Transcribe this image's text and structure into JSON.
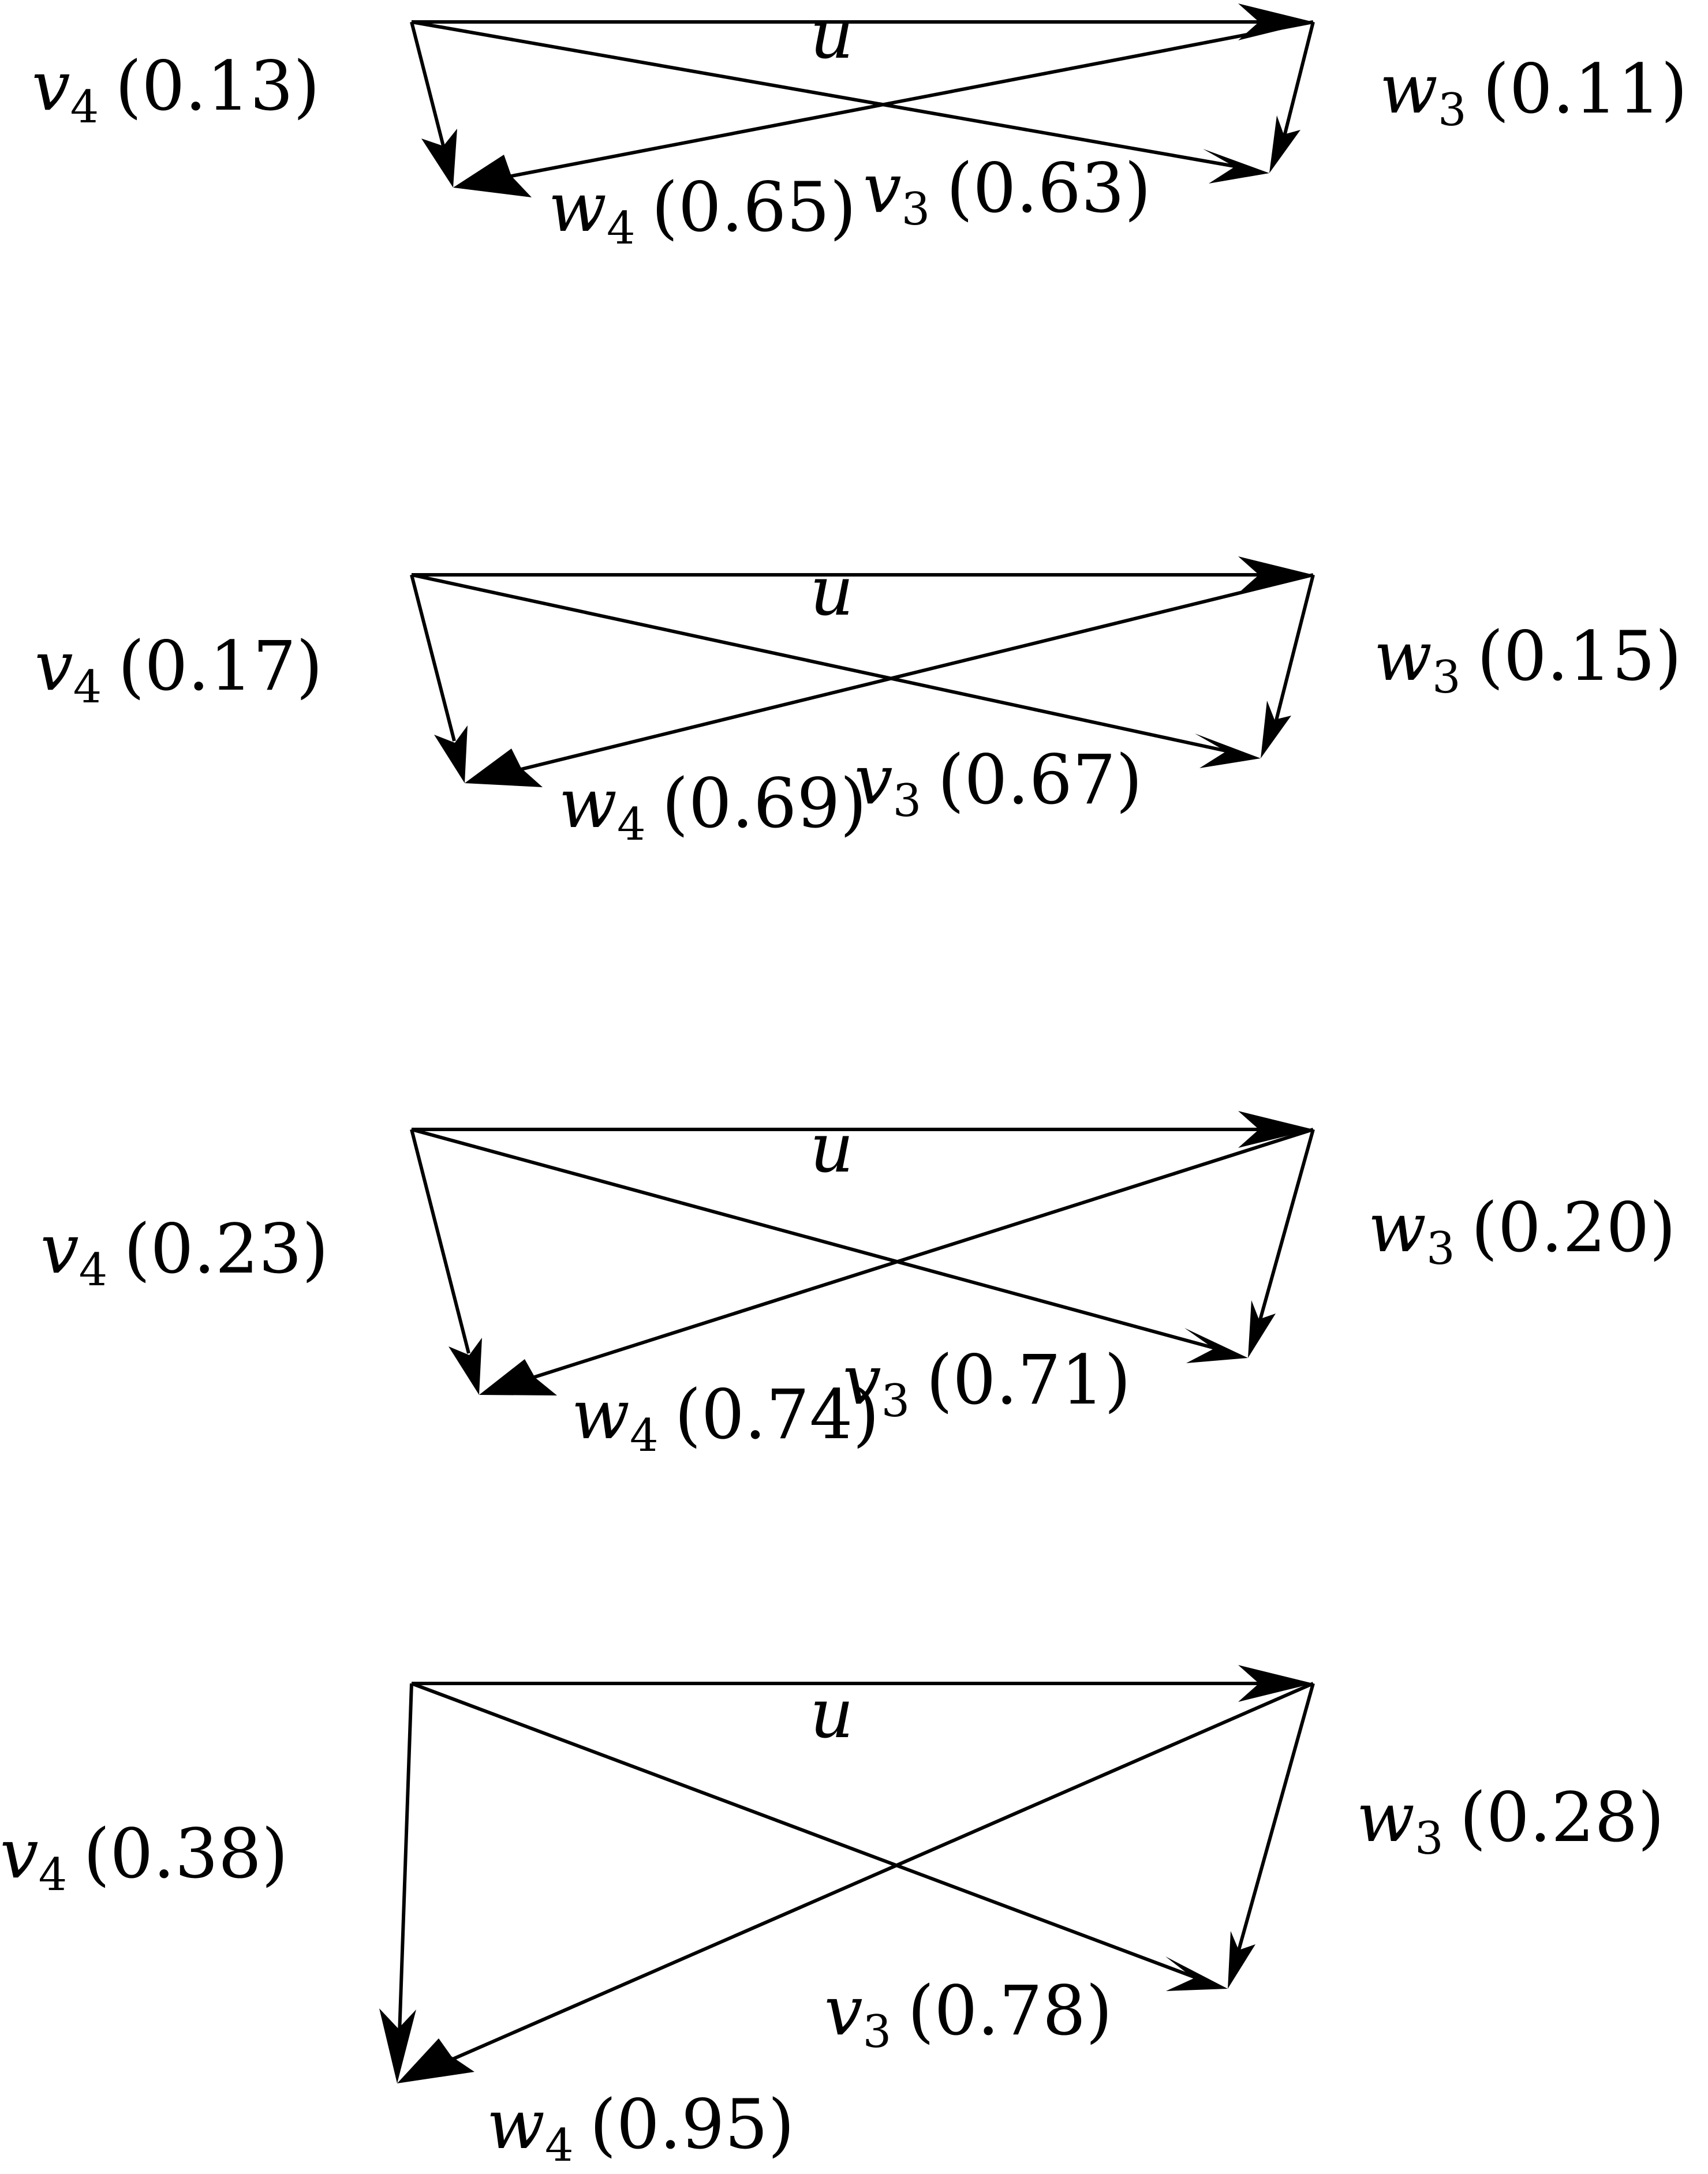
{
  "panels": [
    {
      "u": "u",
      "v4": {
        "name": "v",
        "sub": "4",
        "value": "(0.13)"
      },
      "w3": {
        "name": "w",
        "sub": "3",
        "value": "(0.11)"
      },
      "w4": {
        "name": "w",
        "sub": "4",
        "value": "(0.65)"
      },
      "v3": {
        "name": "v",
        "sub": "3",
        "value": "(0.63)"
      }
    },
    {
      "u": "u",
      "v4": {
        "name": "v",
        "sub": "4",
        "value": "(0.17)"
      },
      "w3": {
        "name": "w",
        "sub": "3",
        "value": "(0.15)"
      },
      "w4": {
        "name": "w",
        "sub": "4",
        "value": "(0.69)"
      },
      "v3": {
        "name": "v",
        "sub": "3",
        "value": "(0.67)"
      }
    },
    {
      "u": "u",
      "v4": {
        "name": "v",
        "sub": "4",
        "value": "(0.23)"
      },
      "w3": {
        "name": "w",
        "sub": "3",
        "value": "(0.20)"
      },
      "w4": {
        "name": "w",
        "sub": "4",
        "value": "(0.74)"
      },
      "v3": {
        "name": "v",
        "sub": "3",
        "value": "(0.71)"
      }
    },
    {
      "u": "u",
      "v4": {
        "name": "v",
        "sub": "4",
        "value": "(0.38)"
      },
      "w3": {
        "name": "w",
        "sub": "3",
        "value": "(0.28)"
      },
      "w4": {
        "name": "w",
        "sub": "4",
        "value": "(0.95)"
      },
      "v3": {
        "name": "v",
        "sub": "3",
        "value": "(0.78)"
      }
    }
  ]
}
